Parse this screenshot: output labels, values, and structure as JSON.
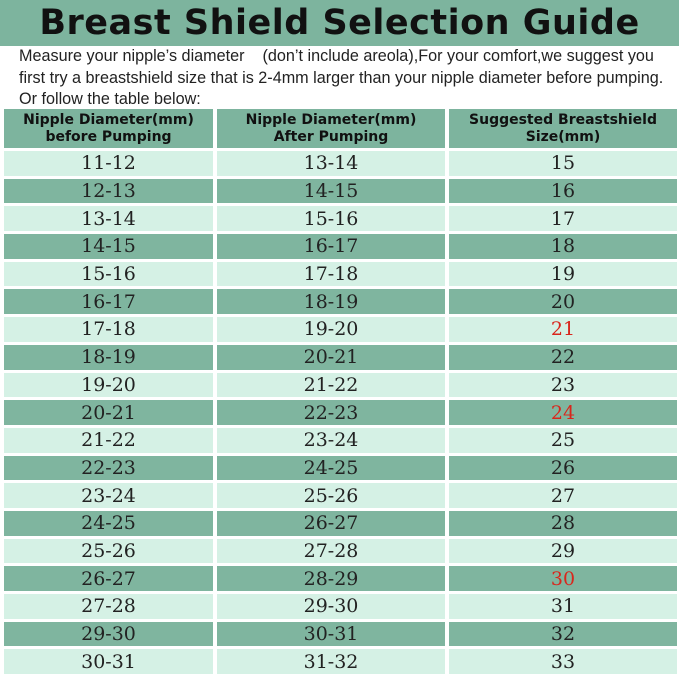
{
  "title": "Breast Shield Selection Guide",
  "intro": [
    "Measure your nipple’s diameter    (don’t include areola),For your comfort,we suggest you",
    "first try a breastshield size that is 2-4mm larger than your nipple diameter before pumping.",
    "Or follow the table below:"
  ],
  "colors": {
    "dark_row": "#7fb59f",
    "light_row": "#d5f1e5",
    "highlight": "#d9261c"
  },
  "table": {
    "headers": [
      [
        "Nipple Diameter(mm)",
        "before Pumping"
      ],
      [
        "Nipple Diameter(mm)",
        "After Pumping"
      ],
      [
        "Suggested Breastshield",
        "Size(mm)"
      ]
    ],
    "rows": [
      [
        "11-12",
        "13-14",
        "15"
      ],
      [
        "12-13",
        "14-15",
        "16"
      ],
      [
        "13-14",
        "15-16",
        "17"
      ],
      [
        "14-15",
        "16-17",
        "18"
      ],
      [
        "15-16",
        "17-18",
        "19"
      ],
      [
        "16-17",
        "18-19",
        "20"
      ],
      [
        "17-18",
        "19-20",
        "21"
      ],
      [
        "18-19",
        "20-21",
        "22"
      ],
      [
        "19-20",
        "21-22",
        "23"
      ],
      [
        "20-21",
        "22-23",
        "24"
      ],
      [
        "21-22",
        "23-24",
        "25"
      ],
      [
        "22-23",
        "24-25",
        "26"
      ],
      [
        "23-24",
        "25-26",
        "27"
      ],
      [
        "24-25",
        "26-27",
        "28"
      ],
      [
        "25-26",
        "27-28",
        "29"
      ],
      [
        "26-27",
        "28-29",
        "30"
      ],
      [
        "27-28",
        "29-30",
        "31"
      ],
      [
        "29-30",
        "30-31",
        "32"
      ],
      [
        "30-31",
        "31-32",
        "33"
      ]
    ],
    "highlighted_sizes": [
      "21",
      "24",
      "30"
    ]
  }
}
